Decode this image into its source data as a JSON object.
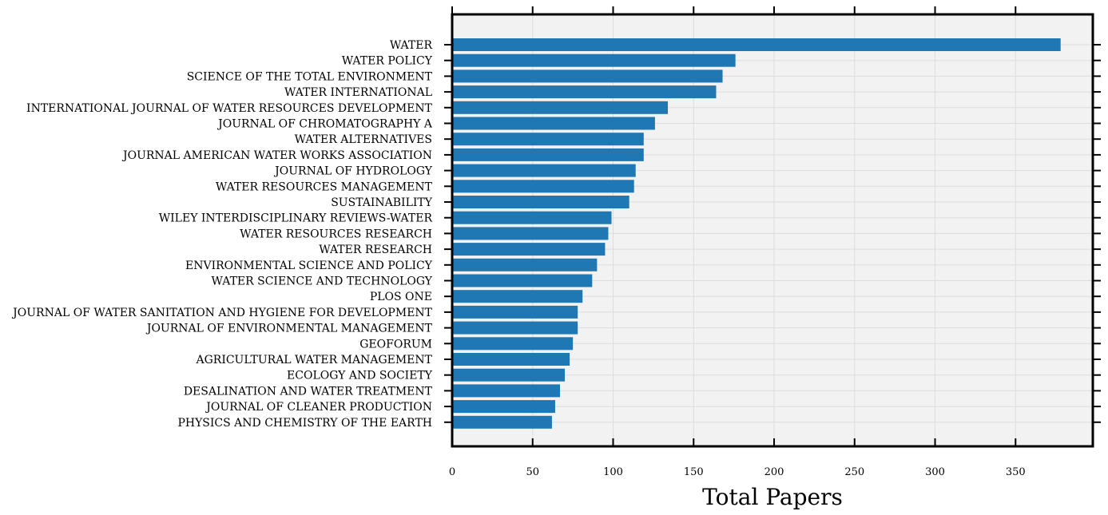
{
  "chart_data": {
    "type": "bar",
    "orientation": "horizontal",
    "title": "",
    "xlabel": "Total Papers",
    "ylabel": "",
    "xlim": [
      0,
      398
    ],
    "xticks": [
      0,
      50,
      100,
      150,
      200,
      250,
      300,
      350
    ],
    "grid": true,
    "bar_color": "#1f77b4",
    "plot_background": "#f2f2f2",
    "categories": [
      "WATER",
      "WATER POLICY",
      "SCIENCE OF THE TOTAL ENVIRONMENT",
      "WATER INTERNATIONAL",
      "INTERNATIONAL JOURNAL OF WATER RESOURCES DEVELOPMENT",
      "JOURNAL OF CHROMATOGRAPHY A",
      "WATER ALTERNATIVES",
      "JOURNAL AMERICAN WATER WORKS ASSOCIATION",
      "JOURNAL OF HYDROLOGY",
      "WATER RESOURCES MANAGEMENT",
      "SUSTAINABILITY",
      "WILEY INTERDISCIPLINARY REVIEWS-WATER",
      "WATER RESOURCES RESEARCH",
      "WATER RESEARCH",
      "ENVIRONMENTAL SCIENCE AND POLICY",
      "WATER SCIENCE AND TECHNOLOGY",
      "PLOS ONE",
      "JOURNAL OF WATER SANITATION AND HYGIENE FOR DEVELOPMENT",
      "JOURNAL OF ENVIRONMENTAL MANAGEMENT",
      "GEOFORUM",
      "AGRICULTURAL WATER MANAGEMENT",
      "ECOLOGY AND SOCIETY",
      "DESALINATION AND WATER TREATMENT",
      "JOURNAL OF CLEANER PRODUCTION",
      "PHYSICS AND CHEMISTRY OF THE EARTH"
    ],
    "values": [
      378,
      176,
      168,
      164,
      134,
      126,
      119,
      119,
      114,
      113,
      110,
      99,
      97,
      95,
      90,
      87,
      81,
      78,
      78,
      75,
      73,
      70,
      67,
      64,
      62
    ]
  }
}
